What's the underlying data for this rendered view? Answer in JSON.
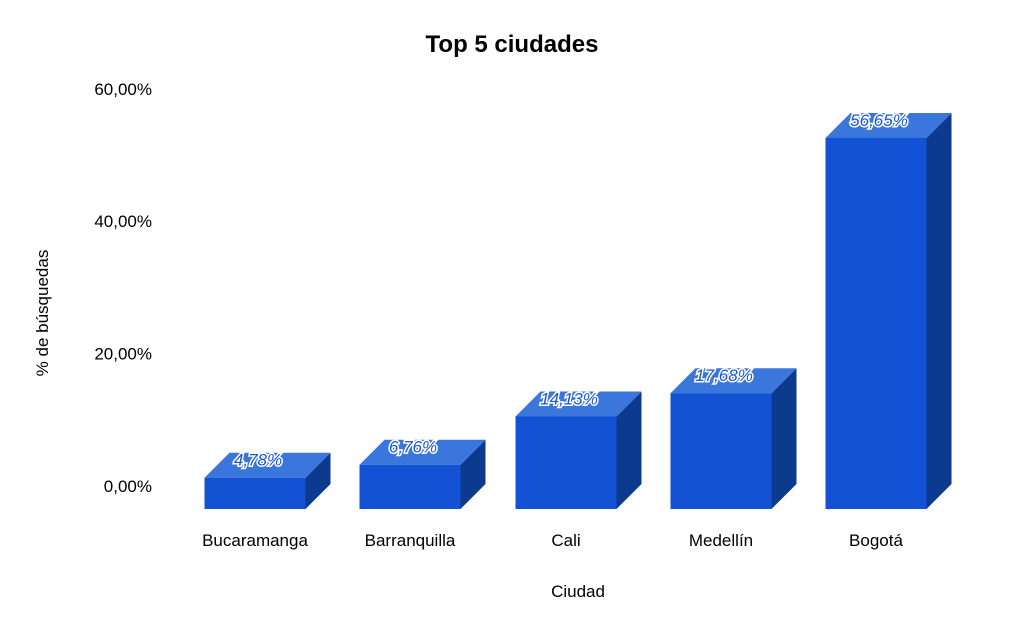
{
  "chart_data": {
    "type": "bar",
    "title": "Top 5 ciudades",
    "xlabel": "Ciudad",
    "ylabel": "% de búsquedas",
    "categories": [
      "Bucaramanga",
      "Barranquilla",
      "Cali",
      "Medellín",
      "Bogotá"
    ],
    "values": [
      4.78,
      6.76,
      14.13,
      17.68,
      56.65
    ],
    "data_labels": [
      "4,78%",
      "6,76%",
      "14,13%",
      "17,68%",
      "56,65%"
    ],
    "yticks": [
      0,
      20,
      40,
      60
    ],
    "ytick_labels": [
      "0,00%",
      "20,00%",
      "40,00%",
      "60,00%"
    ],
    "ylim": [
      0,
      60
    ],
    "grid": false,
    "legend": "none",
    "style": "3d-column",
    "colors": {
      "front": "#1352d4",
      "top": "#3b76dd",
      "side": "#0c3a8f"
    }
  }
}
